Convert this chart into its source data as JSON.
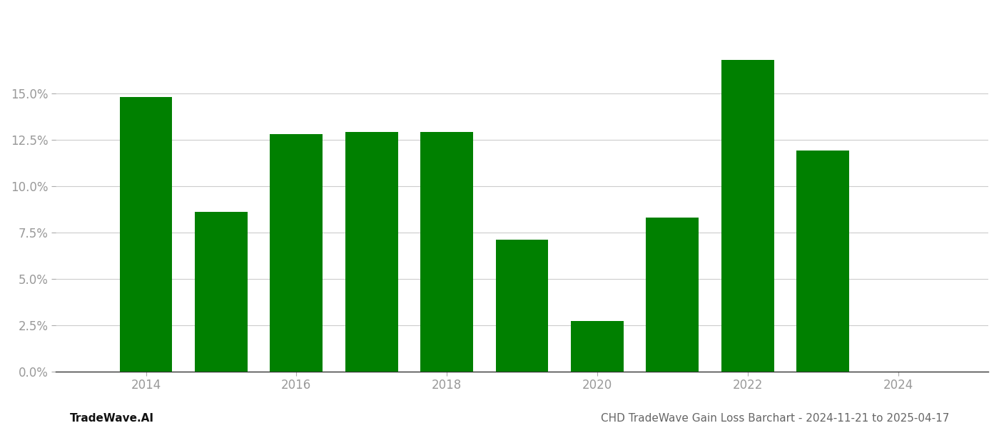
{
  "years": [
    2014,
    2015,
    2016,
    2017,
    2018,
    2019,
    2020,
    2021,
    2022,
    2023
  ],
  "values": [
    0.148,
    0.086,
    0.128,
    0.129,
    0.129,
    0.071,
    0.027,
    0.083,
    0.168,
    0.119
  ],
  "bar_color": "#008000",
  "background_color": "#ffffff",
  "ylim": [
    0,
    0.19
  ],
  "yticks": [
    0.0,
    0.025,
    0.05,
    0.075,
    0.1,
    0.125,
    0.15
  ],
  "xticks": [
    2014,
    2016,
    2018,
    2020,
    2022,
    2024
  ],
  "xlim": [
    2012.8,
    2025.2
  ],
  "grid_color": "#cccccc",
  "tick_label_color": "#999999",
  "footer_left": "TradeWave.AI",
  "footer_right": "CHD TradeWave Gain Loss Barchart - 2024-11-21 to 2025-04-17",
  "footer_fontsize": 11,
  "bar_width": 0.7
}
